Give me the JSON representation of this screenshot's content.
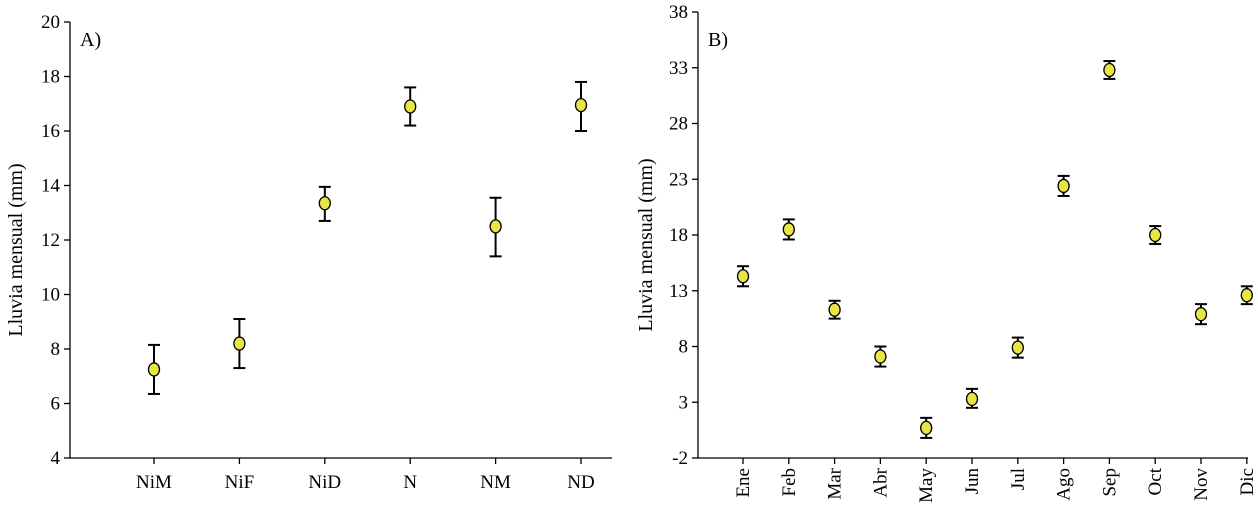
{
  "chart_data": [
    {
      "type": "scatter",
      "panel_label": "A)",
      "title": "",
      "xlabel": "",
      "ylabel": "Lluvia mensual (mm)",
      "ylim": [
        4,
        20
      ],
      "yticks": [
        4,
        6,
        8,
        10,
        12,
        14,
        16,
        18,
        20
      ],
      "categories": [
        "NiM",
        "NiF",
        "NiD",
        "N",
        "NM",
        "ND"
      ],
      "series": [
        {
          "values": [
            7.25,
            8.2,
            13.35,
            16.9,
            12.5,
            16.95
          ],
          "error_low": [
            6.35,
            7.3,
            12.7,
            16.2,
            11.4,
            16.0
          ],
          "error_high": [
            8.15,
            9.1,
            13.95,
            17.6,
            13.55,
            17.8
          ]
        }
      ],
      "grid": false,
      "marker_color": "#e8e645"
    },
    {
      "type": "scatter",
      "panel_label": "B)",
      "title": "",
      "xlabel": "",
      "ylabel": "Lluvia mensual (mm)",
      "ylim": [
        -2,
        38
      ],
      "yticks": [
        -2,
        3,
        8,
        13,
        18,
        23,
        28,
        33,
        38
      ],
      "categories": [
        "Ene",
        "Feb",
        "Mar",
        "Abr",
        "May",
        "Jun",
        "Jul",
        "Ago",
        "Sep",
        "Oct",
        "Nov",
        "Dic"
      ],
      "series": [
        {
          "values": [
            14.3,
            18.5,
            11.3,
            7.1,
            0.7,
            3.3,
            7.9,
            22.4,
            32.8,
            18.0,
            10.9,
            12.6
          ],
          "error_low": [
            13.4,
            17.6,
            10.5,
            6.2,
            -0.2,
            2.5,
            7.0,
            21.5,
            32.0,
            17.2,
            10.0,
            11.8
          ],
          "error_high": [
            15.2,
            19.4,
            12.1,
            8.0,
            1.6,
            4.2,
            8.8,
            23.3,
            33.6,
            18.8,
            11.8,
            13.4
          ]
        }
      ],
      "grid": false,
      "marker_color": "#e8e645"
    }
  ]
}
